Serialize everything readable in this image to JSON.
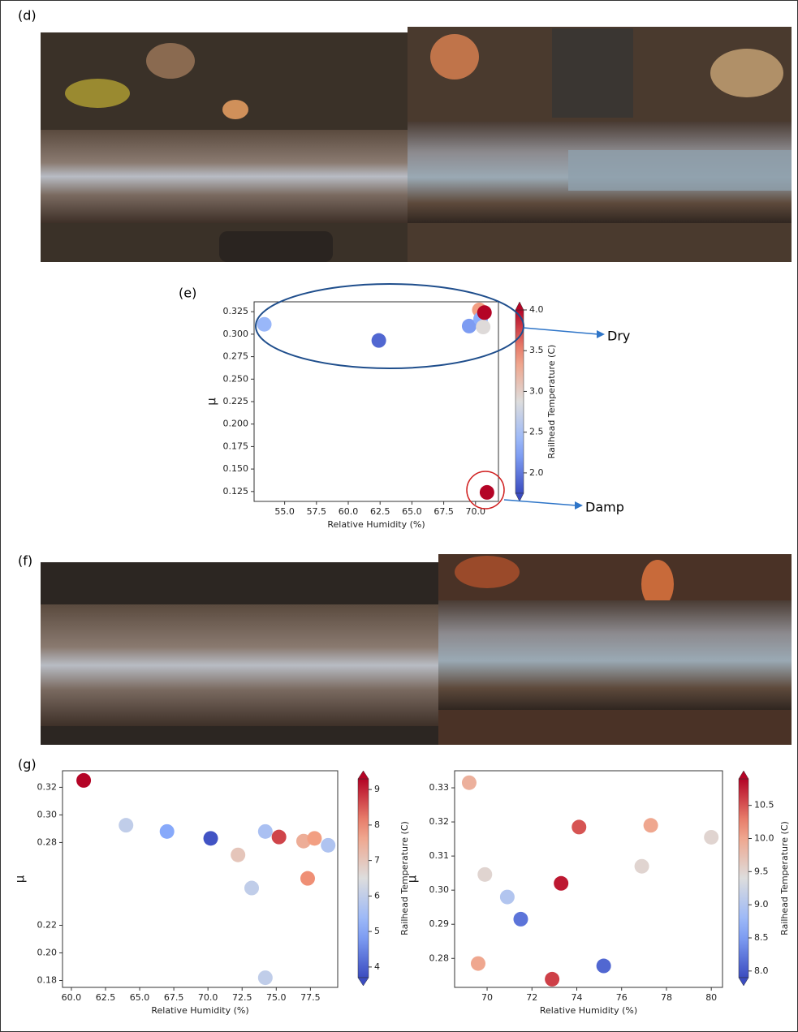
{
  "panel_labels": [
    "(d)",
    "(e)",
    "(f)",
    "(g)"
  ],
  "chart_data": [
    {
      "type": "scatter",
      "x_label": "Relative Humidity (%)",
      "y_label": "μ",
      "x": [
        53.4,
        62.4,
        69.5,
        70.3,
        70.4,
        70.6,
        70.7,
        70.9
      ],
      "values": [
        0.311,
        0.293,
        0.309,
        0.327,
        0.317,
        0.308,
        0.324,
        0.124
      ],
      "color_values": [
        2.4,
        1.9,
        2.2,
        3.4,
        2.3,
        2.9,
        4.0,
        4.0
      ],
      "colormap": "coolwarm",
      "clim": [
        1.75,
        4.0
      ],
      "cticks": [
        {
          "value": 2.0,
          "label": "2.0"
        },
        2.5,
        {
          "value": 3.0,
          "label": "3.0"
        },
        3.5,
        {
          "value": 4.0,
          "label": "4.0"
        }
      ],
      "colorbar_label": "Railhead Temperature (C)",
      "xlim": [
        52.6,
        71.8
      ],
      "xticks": [
        {
          "value": 55,
          "label": "55.0"
        },
        57.5,
        {
          "value": 60,
          "label": "60.0"
        },
        62.5,
        {
          "value": 65,
          "label": "65.0"
        },
        67.5,
        {
          "value": 70,
          "label": "70.0"
        }
      ],
      "ylim": [
        0.114,
        0.336
      ],
      "yticks": [
        0.125,
        {
          "value": 0.15,
          "label": "0.150"
        },
        0.175,
        {
          "value": 0.2,
          "label": "0.200"
        },
        0.225,
        {
          "value": 0.25,
          "label": "0.250"
        },
        0.275,
        {
          "value": 0.3,
          "label": "0.300"
        },
        0.325
      ],
      "annotations": [
        "Dry",
        "Damp"
      ]
    },
    {
      "type": "scatter",
      "x_label": "Relative Humidity (%)",
      "y_label": "μ",
      "x": [
        60.9,
        64.0,
        67.0,
        70.2,
        72.2,
        73.2,
        74.2,
        75.2,
        74.2,
        77.0,
        77.8,
        77.3,
        78.8
      ],
      "values": [
        0.325,
        0.2925,
        0.288,
        0.283,
        0.271,
        0.247,
        0.288,
        0.284,
        0.182,
        0.281,
        0.283,
        0.254,
        0.278
      ],
      "color_values": [
        9.3,
        6.0,
        5.0,
        3.8,
        7.0,
        6.0,
        5.6,
        8.7,
        6.0,
        7.5,
        7.8,
        8.0,
        5.7
      ],
      "colormap": "coolwarm",
      "clim": [
        3.7,
        9.3
      ],
      "cticks": [
        4,
        5,
        6,
        7,
        8,
        9
      ],
      "colorbar_label": "Railhead Temperature (C)",
      "xlim": [
        59.35,
        79.5
      ],
      "xticks": [
        {
          "value": 60,
          "label": "60.0"
        },
        62.5,
        {
          "value": 65,
          "label": "65.0"
        },
        67.5,
        {
          "value": 70,
          "label": "70.0"
        },
        72.5,
        {
          "value": 75,
          "label": "75.0"
        },
        77.5
      ],
      "ylim": [
        0.175,
        0.332
      ],
      "yticks": [
        0.32,
        {
          "value": 0.3,
          "label": "0.30"
        },
        0.28,
        0.22,
        {
          "value": 0.2,
          "label": "0.20"
        },
        0.18
      ]
    },
    {
      "type": "scatter",
      "x_label": "Relative Humidity (%)",
      "y_label": "μ",
      "x": [
        69.2,
        69.9,
        70.9,
        71.5,
        69.6,
        72.9,
        73.3,
        74.1,
        75.2,
        76.9,
        77.3,
        80.0
      ],
      "values": [
        0.3315,
        0.3046,
        0.298,
        0.2915,
        0.2785,
        0.2739,
        0.302,
        0.3185,
        0.2778,
        0.307,
        0.319,
        0.3155
      ],
      "color_values": [
        9.9,
        9.5,
        9.0,
        8.2,
        10.0,
        10.6,
        10.8,
        10.5,
        8.1,
        9.5,
        10.0,
        9.5
      ],
      "colormap": "coolwarm",
      "clim": [
        7.9,
        10.9
      ],
      "cticks": [
        {
          "value": 8,
          "label": "8.0"
        },
        8.5,
        {
          "value": 9,
          "label": "9.0"
        },
        9.5,
        {
          "value": 10,
          "label": "10.0"
        },
        10.5
      ],
      "colorbar_label": "Railhead Temperature (C)",
      "xlim": [
        68.55,
        80.5
      ],
      "xticks": [
        70,
        72,
        74,
        76,
        78,
        80
      ],
      "ylim": [
        0.2715,
        0.335
      ],
      "yticks": [
        0.33,
        0.32,
        0.31,
        {
          "value": 0.3,
          "label": "0.30"
        },
        0.29,
        0.28
      ]
    }
  ]
}
